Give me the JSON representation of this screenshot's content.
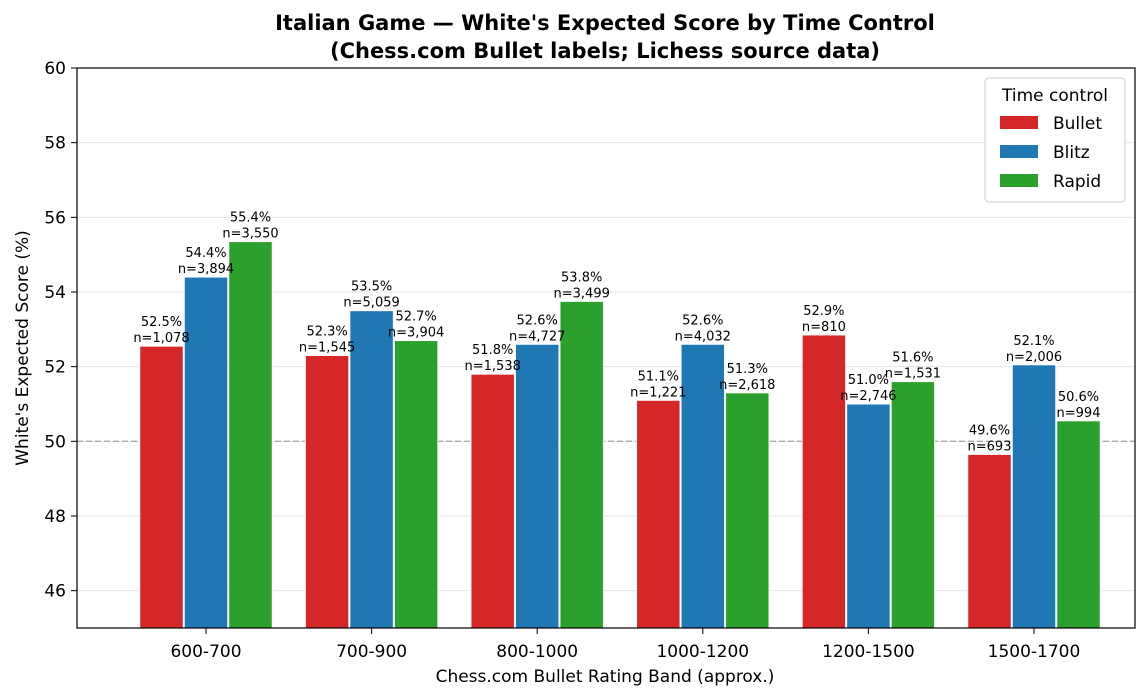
{
  "chart_data": {
    "type": "bar",
    "title": "Italian Game — White's Expected Score by Time Control",
    "subtitle": "(Chess.com Bullet labels; Lichess source data)",
    "xlabel": "Chess.com Bullet Rating Band (approx.)",
    "ylabel": "White's Expected Score (%)",
    "ylim": [
      45,
      60
    ],
    "yticks": [
      46,
      48,
      50,
      52,
      54,
      56,
      58,
      60
    ],
    "reference_line": 50,
    "grid": "y",
    "legend_title": "Time control",
    "legend_position": "top-right",
    "categories": [
      "600-700",
      "700-900",
      "800-1000",
      "1000-1200",
      "1200-1500",
      "1500-1700"
    ],
    "series": [
      {
        "name": "Bullet",
        "color": "#d62728",
        "values": [
          52.55,
          52.3,
          51.8,
          51.1,
          52.85,
          49.65
        ],
        "pct_labels": [
          "52.5%",
          "52.3%",
          "51.8%",
          "51.1%",
          "52.9%",
          "49.6%"
        ],
        "n_labels": [
          "n=1,078",
          "n=1,545",
          "n=1,538",
          "n=1,221",
          "n=810",
          "n=693"
        ]
      },
      {
        "name": "Blitz",
        "color": "#1f77b4",
        "values": [
          54.4,
          53.5,
          52.6,
          52.6,
          51.0,
          52.05
        ],
        "pct_labels": [
          "54.4%",
          "53.5%",
          "52.6%",
          "52.6%",
          "51.0%",
          "52.1%"
        ],
        "n_labels": [
          "n=3,894",
          "n=5,059",
          "n=4,727",
          "n=4,032",
          "n=2,746",
          "n=2,006"
        ]
      },
      {
        "name": "Rapid",
        "color": "#2ca02c",
        "values": [
          55.35,
          52.7,
          53.75,
          51.3,
          51.6,
          50.55
        ],
        "pct_labels": [
          "55.4%",
          "52.7%",
          "53.8%",
          "51.3%",
          "51.6%",
          "50.6%"
        ],
        "n_labels": [
          "n=3,550",
          "n=3,904",
          "n=3,499",
          "n=2,618",
          "n=1,531",
          "n=994"
        ]
      }
    ]
  }
}
